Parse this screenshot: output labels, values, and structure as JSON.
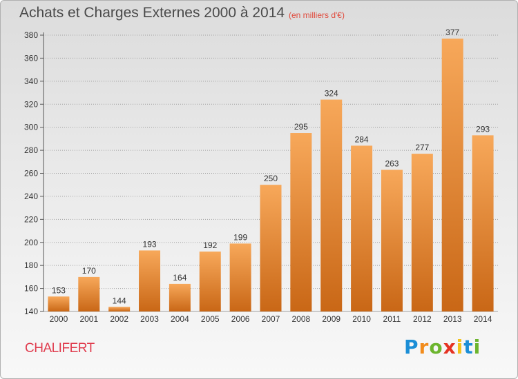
{
  "header": {
    "title": "Achats et Charges Externes 2000 à 2014",
    "subtitle": "(en milliers d'€)"
  },
  "footer": {
    "commune": "CHALIFERT",
    "logo": [
      "P",
      "r",
      "o",
      "x",
      "i",
      "t",
      "i"
    ],
    "logo_colors": [
      "#1b8ed6",
      "#f28c1c",
      "#6cb52e",
      "#e53222",
      "#f2c21a",
      "#1b8ed6",
      "#6cb52e"
    ]
  },
  "colors": {
    "bar_light": "#f7a85a",
    "bar_dark": "#c96716",
    "grid": "#a0a0a0"
  },
  "chart_data": {
    "type": "bar",
    "title": "Achats et Charges Externes 2000 à 2014",
    "subtitle": "(en milliers d'€)",
    "categories": [
      "2000",
      "2001",
      "2002",
      "2003",
      "2004",
      "2005",
      "2006",
      "2007",
      "2008",
      "2009",
      "2010",
      "2011",
      "2012",
      "2013",
      "2014"
    ],
    "values": [
      153,
      170,
      144,
      193,
      164,
      192,
      199,
      250,
      295,
      324,
      284,
      263,
      277,
      377,
      293
    ],
    "ylim": [
      140,
      380
    ],
    "yticks": [
      140,
      160,
      180,
      200,
      220,
      240,
      260,
      280,
      300,
      320,
      340,
      360,
      380
    ],
    "grid": true
  }
}
